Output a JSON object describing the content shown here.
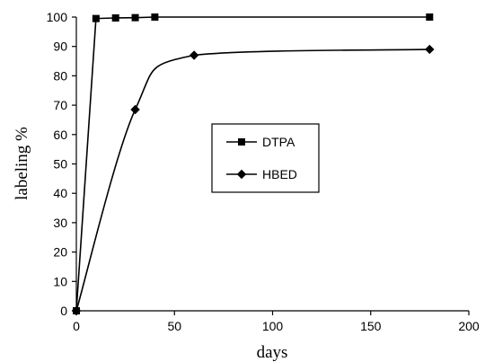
{
  "chart_data": {
    "type": "line",
    "title": "",
    "xlabel": "days",
    "ylabel": "labeling %",
    "xlim": [
      0,
      200
    ],
    "ylim": [
      0,
      100
    ],
    "x_ticks": [
      0,
      50,
      100,
      150,
      200
    ],
    "y_ticks": [
      0,
      10,
      20,
      30,
      40,
      50,
      60,
      70,
      80,
      90,
      100
    ],
    "grid": false,
    "legend_position": "center",
    "series": [
      {
        "name": "DTPA",
        "marker": "square",
        "curve": "straight",
        "color": "#000000",
        "x": [
          0,
          10,
          20,
          30,
          40,
          180
        ],
        "y": [
          0,
          99.5,
          99.7,
          99.8,
          100,
          100
        ]
      },
      {
        "name": "HBED",
        "marker": "diamond",
        "curve": "smooth",
        "color": "#000000",
        "x": [
          0,
          30,
          60,
          180
        ],
        "y": [
          0,
          68.5,
          87,
          89
        ]
      }
    ]
  }
}
